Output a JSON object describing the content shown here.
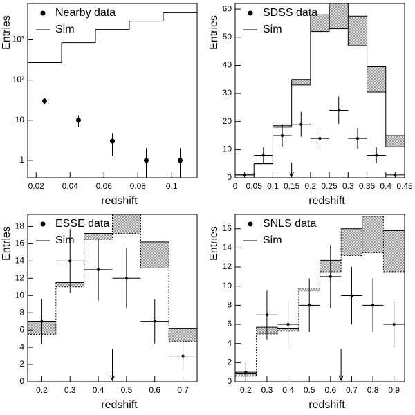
{
  "chart_data": [
    {
      "type": "histogram",
      "xlabel": "redshift",
      "ylabel": "Entries",
      "ylog": true,
      "xlim": [
        0.015,
        0.115
      ],
      "xticks": [
        0.02,
        0.04,
        0.06,
        0.08,
        0.1
      ],
      "ylim": [
        0.37,
        8000
      ],
      "yticks": [
        1,
        10,
        {
          "value": 100,
          "label": "10²"
        },
        {
          "value": 1000,
          "label": "10³"
        }
      ],
      "bins": [
        0.015,
        0.035,
        0.055,
        0.075,
        0.095,
        0.115
      ],
      "sim": {
        "name": "Sim",
        "values": [
          270,
          850,
          1800,
          2900,
          4700
        ]
      },
      "data": {
        "name": "Nearby data",
        "x": [
          0.025,
          0.045,
          0.065,
          0.085,
          0.105
        ],
        "values": [
          30,
          10,
          3,
          1,
          1
        ],
        "errors": [
          5.5,
          3.2,
          1.7,
          1,
          1
        ]
      }
    },
    {
      "type": "histogram",
      "xlabel": "redshift",
      "ylabel": "Entries",
      "lower_style": "solid",
      "xlim": [
        0,
        0.45
      ],
      "xticks": [
        0,
        0.05,
        0.1,
        0.15,
        0.2,
        0.25,
        0.3,
        0.35,
        0.4,
        0.45
      ],
      "ylim": [
        0,
        62
      ],
      "yticks": [
        0,
        10,
        20,
        30,
        40,
        50,
        60
      ],
      "bins": [
        0,
        0.05,
        0.1,
        0.15,
        0.2,
        0.25,
        0.3,
        0.35,
        0.4,
        0.45
      ],
      "sim": {
        "name": "Sim",
        "values": [
          1,
          5,
          18,
          33,
          52,
          53,
          47,
          30.5,
          11
        ],
        "upper": [
          1,
          5,
          18.5,
          35,
          58,
          62,
          57.5,
          39.5,
          15
        ]
      },
      "data": {
        "name": "SDSS  data",
        "x": [
          0.025,
          0.075,
          0.125,
          0.175,
          0.225,
          0.275,
          0.325,
          0.375,
          0.425
        ],
        "values": [
          1,
          8,
          15,
          19,
          14,
          24,
          14,
          8,
          1
        ],
        "errors": [
          1,
          2.8,
          3.9,
          4.4,
          3.7,
          4.9,
          3.7,
          2.8,
          1
        ]
      },
      "cut": 0.15
    },
    {
      "type": "histogram",
      "xlabel": "redshift",
      "ylabel": "Entries",
      "lower_style": "dotted",
      "xlim": [
        0.15,
        0.75
      ],
      "xticks": [
        0.2,
        0.3,
        0.4,
        0.5,
        0.6,
        0.7
      ],
      "ylim": [
        0,
        19.4
      ],
      "yticks": [
        0,
        2,
        4,
        6,
        8,
        10,
        12,
        14,
        16,
        18
      ],
      "bins": [
        0.15,
        0.25,
        0.35,
        0.45,
        0.55,
        0.65,
        0.75
      ],
      "sim": {
        "name": "Sim",
        "values": [
          5.5,
          11,
          16.5,
          17.2,
          13.2,
          4.7
        ],
        "upper": [
          7,
          11.5,
          17.2,
          19.4,
          16.2,
          6.2
        ]
      },
      "data": {
        "name": "ESSE data",
        "x": [
          0.2,
          0.3,
          0.4,
          0.5,
          0.6,
          0.7
        ],
        "values": [
          7,
          14,
          13,
          12,
          7,
          3
        ],
        "errors": [
          2.6,
          3.7,
          3.6,
          3.5,
          2.6,
          1.7
        ]
      },
      "cut": 0.45
    },
    {
      "type": "histogram",
      "xlabel": "redshift",
      "ylabel": "Entries",
      "lower_style": "dotted",
      "xlim": [
        0.15,
        0.95
      ],
      "xticks": [
        0.2,
        0.3,
        0.4,
        0.5,
        0.6,
        0.7,
        0.8,
        0.9
      ],
      "ylim": [
        0,
        17.5
      ],
      "yticks": [
        0,
        2,
        4,
        6,
        8,
        10,
        12,
        14,
        16
      ],
      "bins": [
        0.15,
        0.25,
        0.35,
        0.45,
        0.55,
        0.65,
        0.75,
        0.85,
        0.95
      ],
      "sim": {
        "name": "Sim",
        "values": [
          0.6,
          5,
          5.3,
          9.5,
          11.5,
          13.2,
          13.5,
          11.5
        ],
        "upper": [
          0.9,
          5.7,
          5.6,
          9.8,
          12.7,
          16,
          17.3,
          15.8
        ]
      },
      "data": {
        "name": "SNLS  data",
        "x": [
          0.2,
          0.3,
          0.4,
          0.5,
          0.6,
          0.7,
          0.8,
          0.9
        ],
        "values": [
          1,
          7,
          6,
          8,
          11,
          9,
          8,
          6
        ],
        "errors": [
          1,
          2.6,
          2.4,
          2.8,
          3.3,
          3,
          2.8,
          2.4
        ]
      },
      "cut": 0.65
    }
  ]
}
